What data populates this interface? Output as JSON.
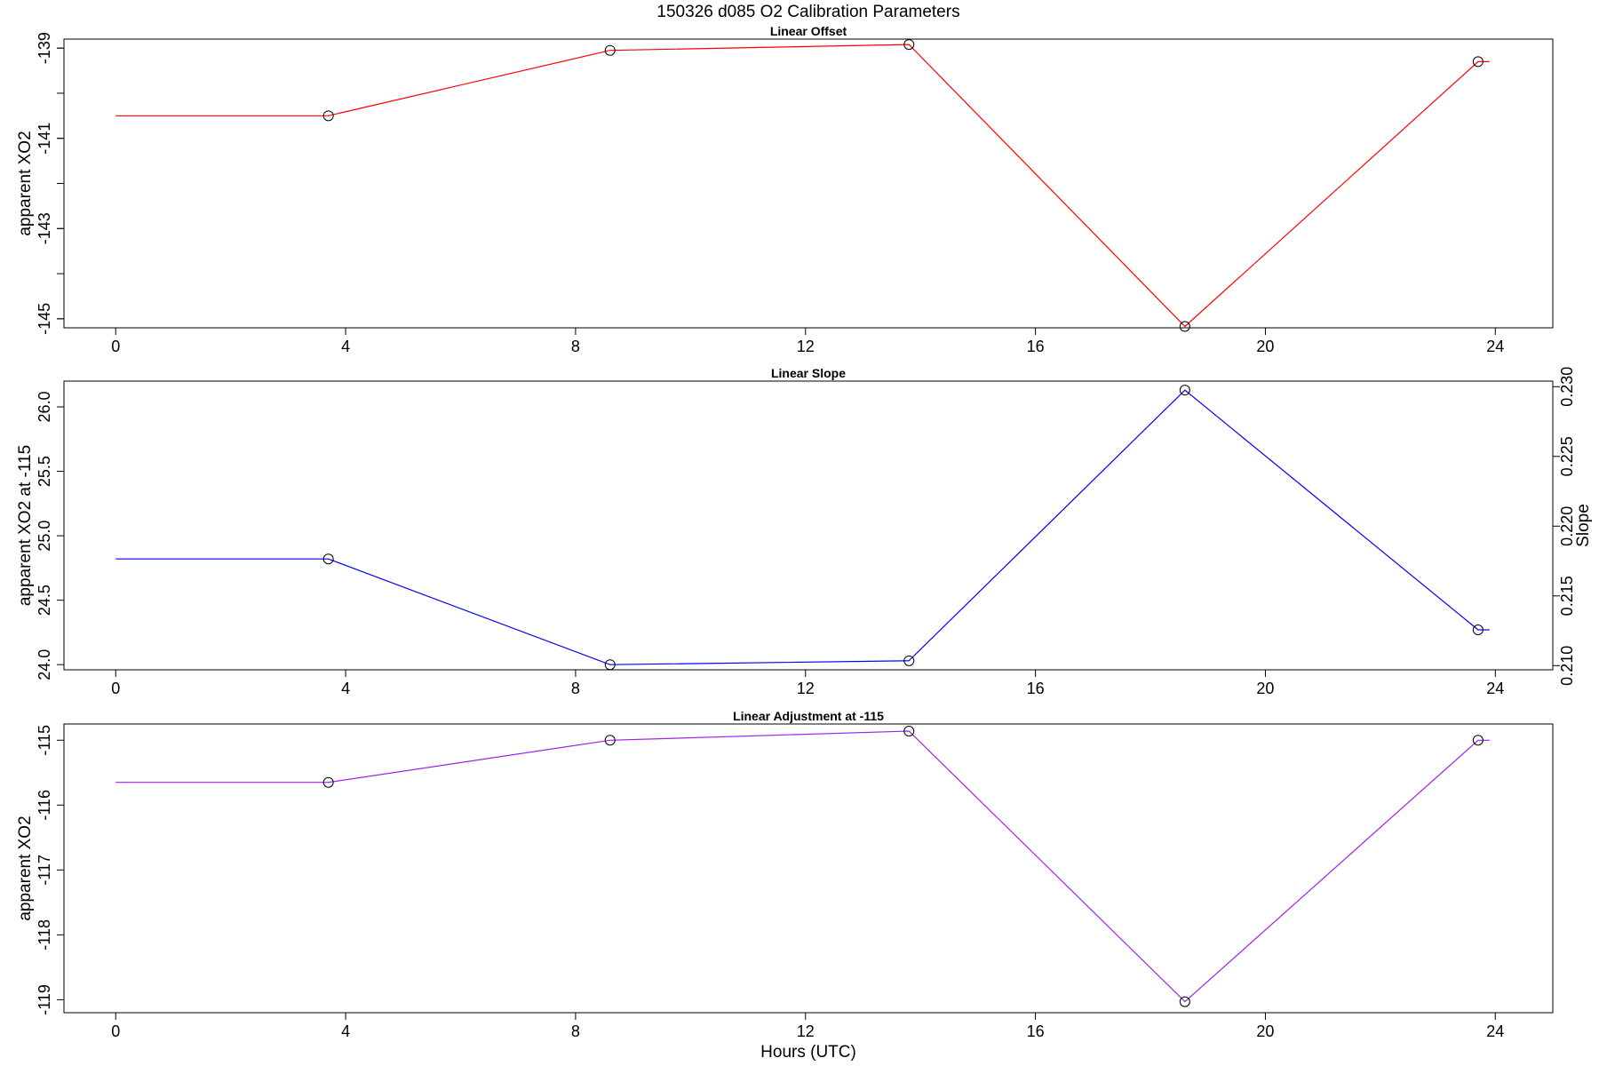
{
  "figure": {
    "title": "150326   d085   O2 Calibration Parameters",
    "xlabel": "Hours (UTC)"
  },
  "chart_data": [
    {
      "type": "line",
      "title": "Linear Offset",
      "xlabel": "",
      "ylabel": "apparent XO2",
      "color": "#ff0000",
      "xlim": [
        -0.9,
        25.0
      ],
      "ylim": [
        -145.2,
        -138.8
      ],
      "xticks": [
        "0",
        "4",
        "8",
        "12",
        "16",
        "20",
        "24"
      ],
      "xtick_values": [
        0,
        4,
        8,
        12,
        16,
        20,
        24
      ],
      "yticks": [
        "-145",
        "-143",
        "-141",
        "-139"
      ],
      "ytick_values": [
        -145,
        -143,
        -141,
        -139
      ],
      "yminor_ticks": [
        -145,
        -144,
        -143,
        -142,
        -141,
        -140,
        -139
      ],
      "x": [
        0,
        3.7,
        8.6,
        13.8,
        18.6,
        23.7,
        23.9
      ],
      "y": [
        -140.5,
        -140.5,
        -139.05,
        -138.92,
        -145.17,
        -139.3,
        -139.3
      ],
      "markers": [
        {
          "x": 3.7,
          "y": -140.5
        },
        {
          "x": 8.6,
          "y": -139.05
        },
        {
          "x": 13.8,
          "y": -138.92
        },
        {
          "x": 18.6,
          "y": -145.17
        },
        {
          "x": 23.7,
          "y": -139.3
        }
      ]
    },
    {
      "type": "line",
      "title": "Linear Slope",
      "xlabel": "",
      "ylabel": "apparent XO2 at -115",
      "y2label": "Slope",
      "color": "#0000ff",
      "xlim": [
        -0.9,
        25.0
      ],
      "ylim": [
        23.96,
        26.2
      ],
      "y2lim": [
        0.2097,
        0.2304
      ],
      "xticks": [
        "0",
        "4",
        "8",
        "12",
        "16",
        "20",
        "24"
      ],
      "xtick_values": [
        0,
        4,
        8,
        12,
        16,
        20,
        24
      ],
      "yticks": [
        "24.0",
        "24.5",
        "25.0",
        "25.5",
        "26.0"
      ],
      "ytick_values": [
        24.0,
        24.5,
        25.0,
        25.5,
        26.0
      ],
      "y2ticks": [
        "0.210",
        "0.215",
        "0.220",
        "0.225",
        "0.230"
      ],
      "y2tick_values": [
        0.21,
        0.215,
        0.22,
        0.225,
        0.23
      ],
      "x": [
        0,
        3.7,
        8.6,
        13.8,
        18.6,
        23.7,
        23.9
      ],
      "y": [
        24.82,
        24.82,
        24.0,
        24.03,
        26.13,
        24.27,
        24.27
      ],
      "markers": [
        {
          "x": 3.7,
          "y": 24.82
        },
        {
          "x": 8.6,
          "y": 24.0
        },
        {
          "x": 13.8,
          "y": 24.03
        },
        {
          "x": 18.6,
          "y": 26.13
        },
        {
          "x": 23.7,
          "y": 24.27
        }
      ]
    },
    {
      "type": "line",
      "title": "Linear Adjustment at -115",
      "xlabel": "Hours (UTC)",
      "ylabel": "apparent XO2",
      "color": "#a020f0",
      "xlim": [
        -0.9,
        25.0
      ],
      "ylim": [
        -119.2,
        -114.75
      ],
      "xticks": [
        "0",
        "4",
        "8",
        "12",
        "16",
        "20",
        "24"
      ],
      "xtick_values": [
        0,
        4,
        8,
        12,
        16,
        20,
        24
      ],
      "yticks": [
        "-119",
        "-118",
        "-117",
        "-116",
        "-115"
      ],
      "ytick_values": [
        -119,
        -118,
        -117,
        -116,
        -115
      ],
      "x": [
        0,
        3.7,
        8.6,
        13.8,
        18.6,
        23.7,
        23.9
      ],
      "y": [
        -115.65,
        -115.65,
        -115.0,
        -114.86,
        -119.03,
        -115.0,
        -115.0
      ],
      "markers": [
        {
          "x": 3.7,
          "y": -115.65
        },
        {
          "x": 8.6,
          "y": -115.0
        },
        {
          "x": 13.8,
          "y": -114.86
        },
        {
          "x": 18.6,
          "y": -119.03
        },
        {
          "x": 23.7,
          "y": -115.0
        }
      ]
    }
  ]
}
